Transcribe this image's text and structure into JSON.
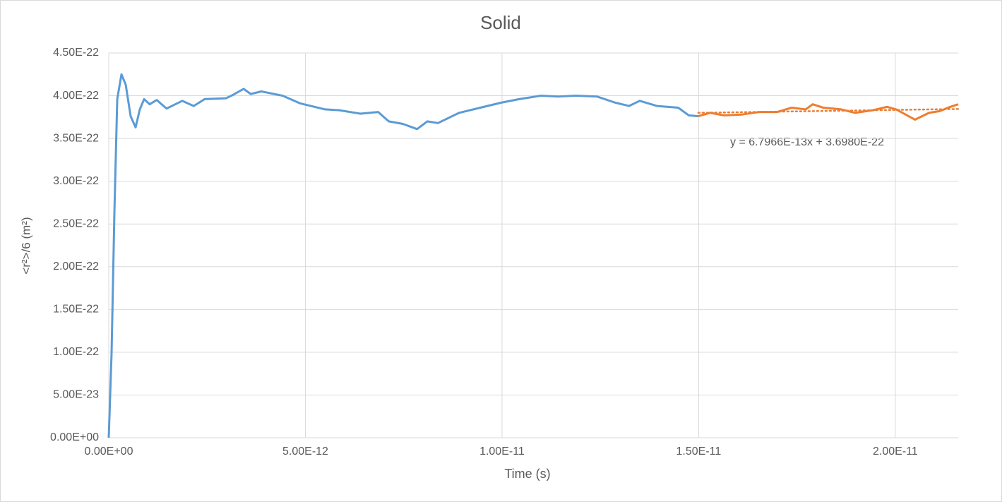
{
  "chart_data": {
    "type": "line",
    "title": "Solid",
    "xlabel": "Time (s)",
    "ylabel": "<r²>/6 (m²)",
    "xlim": [
      0,
      2.16e-11
    ],
    "ylim": [
      0,
      4.5e-22
    ],
    "xticks": [
      {
        "value": 0,
        "label": "0.00E+00"
      },
      {
        "value": 5e-12,
        "label": "5.00E-12"
      },
      {
        "value": 1e-11,
        "label": "1.00E-11"
      },
      {
        "value": 1.5e-11,
        "label": "1.50E-11"
      },
      {
        "value": 2e-11,
        "label": "2.00E-11"
      }
    ],
    "yticks": [
      {
        "value": 0,
        "label": "0.00E+00"
      },
      {
        "value": 5e-23,
        "label": "5.00E-23"
      },
      {
        "value": 1e-22,
        "label": "1.00E-22"
      },
      {
        "value": 1.5e-22,
        "label": "1.50E-22"
      },
      {
        "value": 2e-22,
        "label": "2.00E-22"
      },
      {
        "value": 2.5e-22,
        "label": "2.50E-22"
      },
      {
        "value": 3e-22,
        "label": "3.00E-22"
      },
      {
        "value": 3.5e-22,
        "label": "3.50E-22"
      },
      {
        "value": 4e-22,
        "label": "4.00E-22"
      },
      {
        "value": 4.5e-22,
        "label": "4.50E-22"
      }
    ],
    "grid": true,
    "series": [
      {
        "color": "#5b9bd5",
        "x": [
          0,
          7.2e-14,
          1.44e-13,
          2.16e-13,
          3.24e-13,
          4.31e-13,
          5.57e-13,
          6.83e-13,
          7.9e-13,
          8.99e-13,
          1.04e-12,
          1.22e-12,
          1.47e-12,
          1.87e-12,
          2.16e-12,
          2.44e-12,
          2.98e-12,
          3.16e-12,
          3.43e-12,
          3.61e-12,
          3.88e-12,
          4.42e-12,
          4.87e-12,
          5.5e-12,
          5.86e-12,
          6.4e-12,
          6.85e-12,
          7.12e-12,
          7.48e-12,
          7.84e-12,
          8.1e-12,
          8.37e-12,
          8.91e-12,
          9.45e-12,
          9.99e-12,
          1.044e-11,
          1.098e-11,
          1.143e-11,
          1.188e-11,
          1.242e-11,
          1.287e-11,
          1.323e-11,
          1.35e-11,
          1.394e-11,
          1.448e-11,
          1.475e-11,
          1.499e-11
        ],
        "values": [
          0,
          9.9e-23,
          2.64e-22,
          3.96e-22,
          4.25e-22,
          4.13e-22,
          3.76e-22,
          3.63e-22,
          3.84e-22,
          3.96e-22,
          3.9e-22,
          3.95e-22,
          3.85e-22,
          3.94e-22,
          3.88e-22,
          3.96e-22,
          3.97e-22,
          4.01e-22,
          4.08e-22,
          4.02e-22,
          4.05e-22,
          4e-22,
          3.91e-22,
          3.84e-22,
          3.83e-22,
          3.79e-22,
          3.81e-22,
          3.7e-22,
          3.67e-22,
          3.61e-22,
          3.7e-22,
          3.68e-22,
          3.8e-22,
          3.86e-22,
          3.92e-22,
          3.96e-22,
          4e-22,
          3.99e-22,
          4e-22,
          3.99e-22,
          3.92e-22,
          3.88e-22,
          3.94e-22,
          3.88e-22,
          3.86e-22,
          3.77e-22,
          3.76e-22
        ]
      },
      {
        "color": "#ed7d31",
        "x": [
          1.499e-11,
          1.529e-11,
          1.565e-11,
          1.61e-11,
          1.655e-11,
          1.7e-11,
          1.736e-11,
          1.772e-11,
          1.79e-11,
          1.817e-11,
          1.862e-11,
          1.898e-11,
          1.943e-11,
          1.979e-11,
          2.002e-11,
          2.05e-11,
          2.086e-11,
          2.113e-11,
          2.14e-11,
          2.16e-11
        ],
        "values": [
          3.76e-22,
          3.8e-22,
          3.77e-22,
          3.78e-22,
          3.81e-22,
          3.81e-22,
          3.86e-22,
          3.84e-22,
          3.9e-22,
          3.86e-22,
          3.84e-22,
          3.8e-22,
          3.83e-22,
          3.87e-22,
          3.84e-22,
          3.72e-22,
          3.8e-22,
          3.82e-22,
          3.87e-22,
          3.9e-22
        ]
      }
    ],
    "trendline": {
      "series": 1,
      "slope": 6.7966e-13,
      "intercept": 3.698e-22,
      "label": "y = 6.7966E-13x + 3.6980E-22"
    }
  }
}
